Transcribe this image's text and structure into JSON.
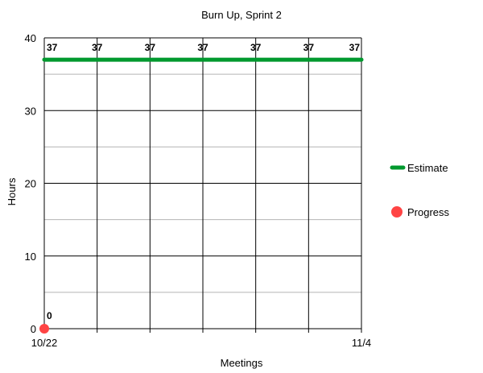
{
  "chart_data": {
    "type": "line",
    "title": "Burn Up, Sprint 2",
    "xlabel": "Meetings",
    "ylabel": "Hours",
    "ylim": [
      0,
      40
    ],
    "y_ticks": [
      "0",
      "10",
      "20",
      "30",
      "40"
    ],
    "y_minor_step": 5,
    "x_point_count": 7,
    "x_tick_labels": [
      {
        "index": 0,
        "label": "10/22"
      },
      {
        "index": 6,
        "label": "11/4"
      }
    ],
    "grid": true,
    "legend_position": "right",
    "series": [
      {
        "name": "Estimate",
        "color": "#00992e",
        "style": "line",
        "values": [
          37,
          37,
          37,
          37,
          37,
          37,
          37
        ],
        "data_labels": [
          "37",
          "37",
          "37",
          "37",
          "37",
          "37",
          "37"
        ]
      },
      {
        "name": "Progress",
        "color": "#ff4444",
        "style": "point",
        "values": [
          0
        ],
        "data_labels": [
          "0"
        ]
      }
    ]
  }
}
